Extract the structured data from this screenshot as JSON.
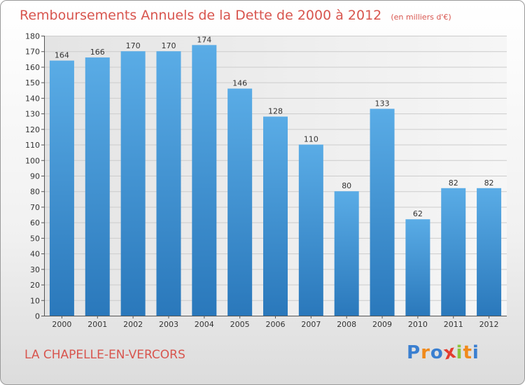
{
  "title": "Remboursements Annuels de la Dette de 2000 à 2012",
  "unit": "(en milliers d'€)",
  "commune": "LA CHAPELLE-EN-VERCORS",
  "logo": {
    "letters": [
      "P",
      "r",
      "o",
      "x",
      "i",
      "t",
      "i"
    ],
    "colors": [
      "#3a7fd0",
      "#f08a1c",
      "#3a7fd0",
      "#e43c2f",
      "#8cc43c",
      "#f08a1c",
      "#3a7fd0"
    ]
  },
  "colors": {
    "bar_light": "#5aace6",
    "bar_dark": "#2a78bb",
    "title": "#d8554e"
  },
  "chart_data": {
    "type": "bar",
    "title": "Remboursements Annuels de la Dette de 2000 à 2012",
    "xlabel": "",
    "ylabel": "",
    "categories": [
      "2000",
      "2001",
      "2002",
      "2003",
      "2004",
      "2005",
      "2006",
      "2007",
      "2008",
      "2009",
      "2010",
      "2011",
      "2012"
    ],
    "values": [
      164,
      166,
      170,
      170,
      174,
      146,
      128,
      110,
      80,
      133,
      62,
      82,
      82
    ],
    "ylim": [
      0,
      180
    ],
    "yticks": [
      0,
      10,
      20,
      30,
      40,
      50,
      60,
      70,
      80,
      90,
      100,
      110,
      120,
      130,
      140,
      150,
      160,
      170,
      180
    ],
    "grid": true
  }
}
